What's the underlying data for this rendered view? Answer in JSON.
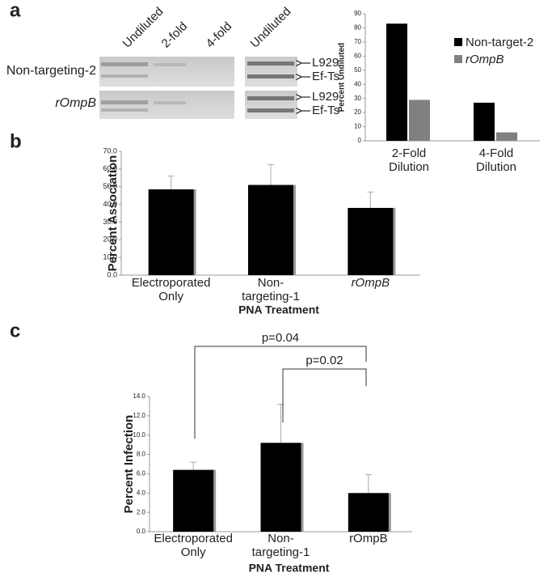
{
  "panel_labels": [
    "a",
    "b",
    "c"
  ],
  "blot": {
    "column_labels": [
      "Undiluted",
      "2-fold",
      "4-fold",
      "Undiluted"
    ],
    "row_labels": [
      "Non-targeting-2",
      "rOmpB"
    ],
    "band_labels": [
      "L929",
      "Ef-Ts",
      "L929",
      "Ef-Ts"
    ]
  },
  "chart_data": [
    {
      "type": "grouped-bar",
      "y_label": "Percent Undiluted",
      "categories": [
        "2-Fold Dilution",
        "4-Fold Dilution"
      ],
      "series": [
        {
          "name": "Non-target-2",
          "color": "#000000",
          "values": [
            83,
            27
          ]
        },
        {
          "name": "rOmpB",
          "color": "#808080",
          "values": [
            29,
            6
          ]
        }
      ],
      "ylim": [
        0,
        90
      ],
      "yticks": [
        0,
        10,
        20,
        30,
        40,
        50,
        60,
        70,
        80,
        90
      ],
      "legend": "right"
    },
    {
      "type": "bar",
      "y_label": "Percent Association",
      "x_label": "PNA Treatment",
      "categories": [
        "Electroporated Only",
        "Non-targeting-1",
        "rOmpB"
      ],
      "values": [
        48.5,
        51,
        38
      ],
      "errors": [
        7.5,
        11.5,
        9
      ],
      "color": "#000000",
      "ylim": [
        0,
        70
      ],
      "yticks": [
        {
          "value": 0,
          "label": "0.0"
        },
        {
          "value": 10,
          "label": "10.0"
        },
        {
          "value": 20,
          "label": "20.0"
        },
        {
          "value": 30,
          "label": "30.0"
        },
        {
          "value": 40,
          "label": "40.0"
        },
        {
          "value": 50,
          "label": "50.0"
        },
        {
          "value": 60,
          "label": "60.0"
        },
        {
          "value": 70,
          "label": "70.0"
        }
      ]
    },
    {
      "type": "bar",
      "y_label": "Percent Infection",
      "x_label": "PNA Treatment",
      "categories": [
        "Electroporated Only",
        "Non-targeting-1",
        "rOmpB"
      ],
      "values": [
        6.4,
        9.2,
        4.0
      ],
      "errors": [
        0.8,
        4.0,
        1.9
      ],
      "color": "#000000",
      "ylim": [
        0,
        14
      ],
      "yticks": [
        {
          "value": 0,
          "label": "0.0"
        },
        {
          "value": 2,
          "label": "2.0"
        },
        {
          "value": 4,
          "label": "4.0"
        },
        {
          "value": 6,
          "label": "6.0"
        },
        {
          "value": 8,
          "label": "8.0"
        },
        {
          "value": 10,
          "label": "10.0"
        },
        {
          "value": 12,
          "label": "12.0"
        },
        {
          "value": 14,
          "label": "14.0"
        }
      ],
      "annotations": [
        "p=0.04",
        "p=0.02"
      ]
    }
  ]
}
